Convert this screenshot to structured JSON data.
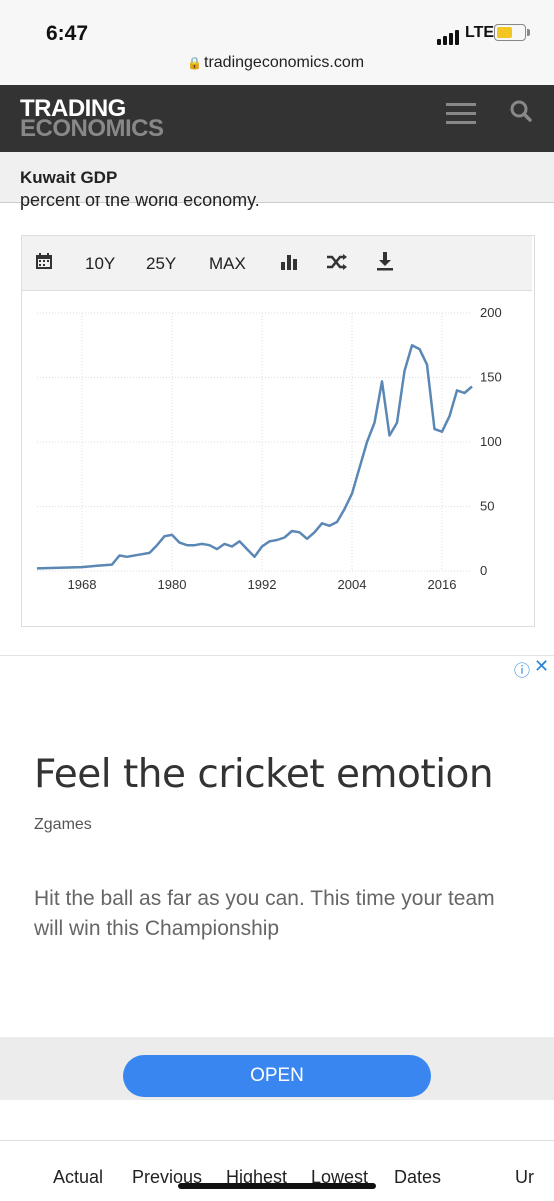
{
  "status": {
    "time": "6:47",
    "network": "LTE"
  },
  "browser": {
    "url": "tradingeconomics.com"
  },
  "header": {
    "logo_line1": "TRADING",
    "logo_line2": "ECONOMICS"
  },
  "page": {
    "title": "Kuwait GDP",
    "cut_text": "percent of the world economy."
  },
  "chart_toolbar": {
    "range_10y": "10Y",
    "range_25y": "25Y",
    "range_max": "MAX"
  },
  "chart_data": {
    "type": "line",
    "title": "",
    "xlabel": "",
    "ylabel": "",
    "x_ticks": [
      1968,
      1980,
      1992,
      2004,
      2016
    ],
    "y_ticks": [
      0,
      50,
      100,
      150,
      200
    ],
    "xlim": [
      1962,
      2020
    ],
    "ylim": [
      0,
      200
    ],
    "color": "#5b87b5",
    "grid": true,
    "series": [
      {
        "x": [
          1962,
          1965,
          1968,
          1970,
          1972,
          1973,
          1974,
          1976,
          1977,
          1978,
          1979,
          1980,
          1981,
          1982,
          1983,
          1984,
          1985,
          1986,
          1987,
          1988,
          1989,
          1990,
          1991,
          1992,
          1993,
          1994,
          1995,
          1996,
          1997,
          1998,
          1999,
          2000,
          2001,
          2002,
          2003,
          2004,
          2005,
          2006,
          2007,
          2008,
          2009,
          2010,
          2011,
          2012,
          2013,
          2014,
          2015,
          2016,
          2017,
          2018,
          2019,
          2020
        ],
        "y": [
          2,
          2.5,
          3,
          4,
          5,
          12,
          11,
          13,
          14,
          20,
          27,
          28,
          22,
          20,
          20,
          21,
          20,
          17,
          21,
          19,
          23,
          17,
          11,
          19,
          23,
          24,
          26,
          31,
          30,
          25,
          30,
          37,
          35,
          38,
          48,
          60,
          80,
          100,
          115,
          147,
          105,
          115,
          155,
          175,
          172,
          160,
          110,
          108,
          120,
          140,
          138,
          143
        ]
      }
    ]
  },
  "ad": {
    "title": "Feel the cricket emotion",
    "brand": "Zgames",
    "description": "Hit the ball as far as you can. This time your team will win this Championship",
    "button": "OPEN",
    "info_icon": "info-icon",
    "close_icon": "close-icon"
  },
  "tabs": [
    "Actual",
    "Previous",
    "Highest",
    "Lowest",
    "Dates",
    "Ur"
  ]
}
